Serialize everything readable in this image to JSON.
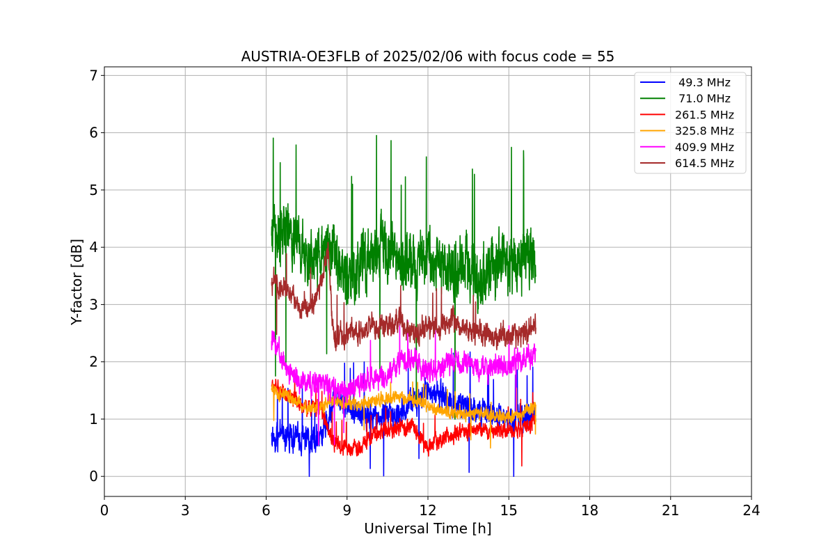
{
  "chart_data": {
    "type": "line",
    "title": "AUSTRIA-OE3FLB of 2025/02/06 with focus code = 55",
    "xlabel": "Universal Time [h]",
    "ylabel": "Y-factor [dB]",
    "xlim": [
      0,
      24
    ],
    "ylim": [
      -0.35,
      7.15
    ],
    "xticks": [
      "0",
      "3",
      "6",
      "9",
      "12",
      "15",
      "18",
      "21",
      "24"
    ],
    "yticks": [
      "0",
      "1",
      "2",
      "3",
      "4",
      "5",
      "6",
      "7"
    ],
    "grid": true,
    "legend_position": "top-right",
    "x_start": 6.2,
    "x_end": 16.0,
    "series": [
      {
        "name": " 49.3 MHz",
        "color": "#0000ff",
        "noise": 0.35,
        "knots": [
          [
            6.2,
            0.7
          ],
          [
            7.0,
            0.7
          ],
          [
            7.8,
            0.6
          ],
          [
            8.3,
            1.0
          ],
          [
            8.6,
            1.5
          ],
          [
            9.0,
            1.2
          ],
          [
            9.5,
            1.1
          ],
          [
            10.0,
            1.0
          ],
          [
            10.5,
            1.05
          ],
          [
            11.0,
            1.1
          ],
          [
            11.5,
            1.3
          ],
          [
            12.0,
            1.5
          ],
          [
            12.5,
            1.4
          ],
          [
            13.0,
            1.3
          ],
          [
            13.5,
            1.2
          ],
          [
            14.0,
            1.1
          ],
          [
            14.5,
            1.05
          ],
          [
            15.0,
            1.0
          ],
          [
            15.5,
            1.0
          ],
          [
            16.0,
            1.1
          ]
        ]
      },
      {
        "name": " 71.0 MHz",
        "color": "#008000",
        "noise": 0.75,
        "knots": [
          [
            6.2,
            4.3
          ],
          [
            6.8,
            4.3
          ],
          [
            7.5,
            3.8
          ],
          [
            8.0,
            3.9
          ],
          [
            8.5,
            4.0
          ],
          [
            9.0,
            3.4
          ],
          [
            9.5,
            3.6
          ],
          [
            10.0,
            4.0
          ],
          [
            10.5,
            3.9
          ],
          [
            11.0,
            3.7
          ],
          [
            11.5,
            3.8
          ],
          [
            12.0,
            3.9
          ],
          [
            12.5,
            3.7
          ],
          [
            13.0,
            3.6
          ],
          [
            13.5,
            3.6
          ],
          [
            14.0,
            3.4
          ],
          [
            14.5,
            3.8
          ],
          [
            15.0,
            3.8
          ],
          [
            15.5,
            3.7
          ],
          [
            16.0,
            3.8
          ]
        ]
      },
      {
        "name": "261.5 MHz",
        "color": "#ff0000",
        "noise": 0.2,
        "knots": [
          [
            6.2,
            1.6
          ],
          [
            6.8,
            1.4
          ],
          [
            7.5,
            1.2
          ],
          [
            8.0,
            1.2
          ],
          [
            8.5,
            0.6
          ],
          [
            9.0,
            0.5
          ],
          [
            9.5,
            0.5
          ],
          [
            10.0,
            0.75
          ],
          [
            10.5,
            0.8
          ],
          [
            11.0,
            0.85
          ],
          [
            11.5,
            0.85
          ],
          [
            12.0,
            0.5
          ],
          [
            12.5,
            0.65
          ],
          [
            13.0,
            0.75
          ],
          [
            13.5,
            0.8
          ],
          [
            14.0,
            0.8
          ],
          [
            14.5,
            0.8
          ],
          [
            15.0,
            0.8
          ],
          [
            15.5,
            0.8
          ],
          [
            16.0,
            1.0
          ]
        ]
      },
      {
        "name": "325.8 MHz",
        "color": "#ffa500",
        "noise": 0.16,
        "knots": [
          [
            6.2,
            1.5
          ],
          [
            6.8,
            1.4
          ],
          [
            7.5,
            1.2
          ],
          [
            8.0,
            1.2
          ],
          [
            8.5,
            1.35
          ],
          [
            9.0,
            1.25
          ],
          [
            9.5,
            1.25
          ],
          [
            10.0,
            1.3
          ],
          [
            10.5,
            1.35
          ],
          [
            11.0,
            1.4
          ],
          [
            11.5,
            1.35
          ],
          [
            12.0,
            1.2
          ],
          [
            12.5,
            1.15
          ],
          [
            13.0,
            1.1
          ],
          [
            13.5,
            1.1
          ],
          [
            14.0,
            1.1
          ],
          [
            14.5,
            1.05
          ],
          [
            15.0,
            1.05
          ],
          [
            15.5,
            1.1
          ],
          [
            16.0,
            1.25
          ]
        ]
      },
      {
        "name": "409.9 MHz",
        "color": "#ff00ff",
        "noise": 0.3,
        "knots": [
          [
            6.2,
            2.4
          ],
          [
            6.8,
            1.9
          ],
          [
            7.5,
            1.6
          ],
          [
            8.0,
            1.65
          ],
          [
            8.5,
            1.5
          ],
          [
            9.0,
            1.5
          ],
          [
            9.5,
            1.6
          ],
          [
            10.0,
            1.7
          ],
          [
            10.5,
            1.8
          ],
          [
            11.0,
            2.0
          ],
          [
            11.5,
            2.05
          ],
          [
            12.0,
            1.8
          ],
          [
            12.5,
            1.95
          ],
          [
            13.0,
            2.0
          ],
          [
            13.5,
            2.0
          ],
          [
            14.0,
            1.85
          ],
          [
            14.5,
            1.9
          ],
          [
            15.0,
            1.95
          ],
          [
            15.5,
            2.05
          ],
          [
            16.0,
            2.15
          ]
        ]
      },
      {
        "name": "614.5 MHz",
        "color": "#a52a2a",
        "noise": 0.3,
        "knots": [
          [
            6.2,
            3.4
          ],
          [
            6.8,
            3.2
          ],
          [
            7.5,
            2.9
          ],
          [
            8.0,
            3.3
          ],
          [
            8.3,
            4.0
          ],
          [
            8.5,
            2.4
          ],
          [
            9.0,
            2.5
          ],
          [
            9.5,
            2.55
          ],
          [
            10.0,
            2.6
          ],
          [
            10.5,
            2.65
          ],
          [
            11.0,
            2.7
          ],
          [
            11.5,
            2.45
          ],
          [
            12.0,
            2.6
          ],
          [
            12.5,
            2.6
          ],
          [
            13.0,
            2.7
          ],
          [
            13.5,
            2.55
          ],
          [
            14.0,
            2.5
          ],
          [
            14.5,
            2.45
          ],
          [
            15.0,
            2.45
          ],
          [
            15.5,
            2.5
          ],
          [
            16.0,
            2.6
          ]
        ]
      }
    ]
  }
}
